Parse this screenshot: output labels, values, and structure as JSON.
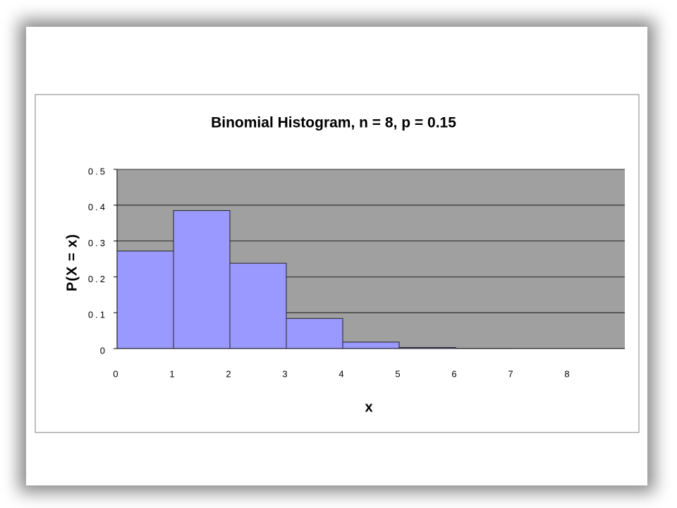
{
  "chart_data": {
    "type": "bar",
    "title": "Binomial Histogram, n = 8, p = 0.15",
    "x_label": "x",
    "y_label": "P(X = x)",
    "categories": [
      "0",
      "1",
      "2",
      "3",
      "4",
      "5",
      "6",
      "7",
      "8"
    ],
    "values": [
      0.272,
      0.385,
      0.238,
      0.084,
      0.018,
      0.003,
      0.0002,
      0,
      0
    ],
    "color": "#9999ff",
    "plot_background": "#a0a0a0",
    "ylim": [
      0,
      0.5
    ],
    "yticks": [
      0,
      0.1,
      0.2,
      0.3,
      0.4,
      0.5
    ],
    "grid": true
  }
}
